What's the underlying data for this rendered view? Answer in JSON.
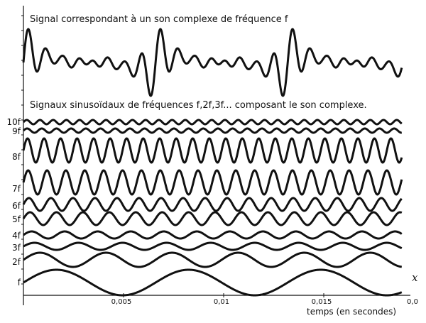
{
  "top_title": "Signal correspondant à un son complexe de fréquence f",
  "bottom_title": "Signaux sinusoïdaux de fréquences f,2f,3f... composant le son complexe.",
  "x_axis_letter": "x",
  "x_axis_label": "temps (en secondes)",
  "x_ticks": [
    "0,005",
    "0,01",
    "0,015",
    "0,0"
  ],
  "harmonic_labels": [
    "f",
    "2f",
    "3f",
    "4f",
    "5f",
    "6f",
    "7f",
    "8f",
    "9f",
    "10f"
  ],
  "colors": {
    "line": "#111111",
    "background": "#ffffff"
  },
  "chart_data": {
    "type": "line",
    "title": "Signal correspondant à un son complexe de fréquence f",
    "xlabel": "temps (en secondes)",
    "xlim": [
      0,
      0.0185
    ],
    "x_ticks": [
      0.005,
      0.01,
      0.015
    ],
    "fundamental_period_s": 0.0066,
    "series": [
      {
        "name": "f",
        "harmonic": 1,
        "relative_amplitude": 0.55
      },
      {
        "name": "2f",
        "harmonic": 2,
        "relative_amplitude": 0.5
      },
      {
        "name": "3f",
        "harmonic": 3,
        "relative_amplitude": 0.28
      },
      {
        "name": "4f",
        "harmonic": 4,
        "relative_amplitude": 0.3
      },
      {
        "name": "5f",
        "harmonic": 5,
        "relative_amplitude": 0.55
      },
      {
        "name": "6f",
        "harmonic": 6,
        "relative_amplitude": 0.55
      },
      {
        "name": "7f",
        "harmonic": 7,
        "relative_amplitude": 1.0
      },
      {
        "name": "8f",
        "harmonic": 8,
        "relative_amplitude": 1.0
      },
      {
        "name": "9f",
        "harmonic": 9,
        "relative_amplitude": 0.2
      },
      {
        "name": "10f",
        "harmonic": 10,
        "relative_amplitude": 0.2
      }
    ]
  }
}
